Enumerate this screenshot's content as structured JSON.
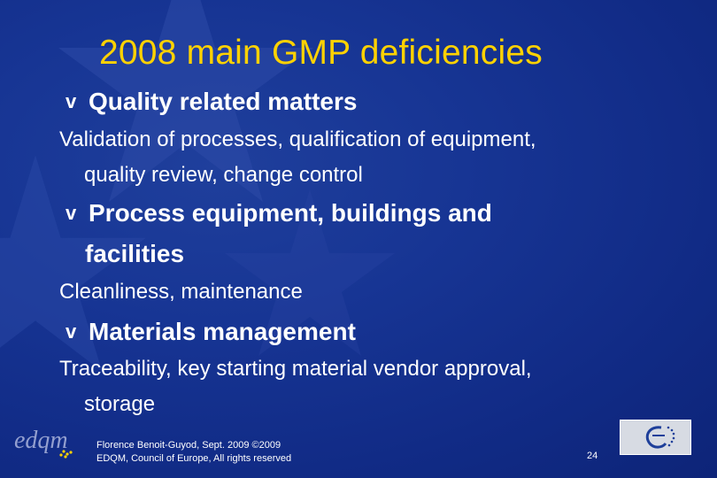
{
  "slide": {
    "title": "2008 main GMP deficiencies",
    "sections": [
      {
        "heading_line1": "Quality related matters",
        "heading_line2": "",
        "detail_line1": "Validation of processes, qualification of equipment,",
        "detail_line2": "quality review, change control"
      },
      {
        "heading_line1": "Process equipment, buildings and",
        "heading_line2": "facilities",
        "detail_line1": "Cleanliness, maintenance",
        "detail_line2": ""
      },
      {
        "heading_line1": "Materials management",
        "heading_line2": "",
        "detail_line1": "Traceability, key starting material vendor approval,",
        "detail_line2": "storage"
      }
    ],
    "bullet_glyph": "v"
  },
  "footer": {
    "credit_line1": "Florence Benoit-Guyod, Sept. 2009 ©2009",
    "credit_line2": "EDQM, Council of Europe,  All rights reserved",
    "page_number": "24",
    "logo_text": "edqm"
  },
  "colors": {
    "background": "#163393",
    "title": "#ffd200",
    "text": "#ffffff",
    "star": "#3b58b0"
  }
}
